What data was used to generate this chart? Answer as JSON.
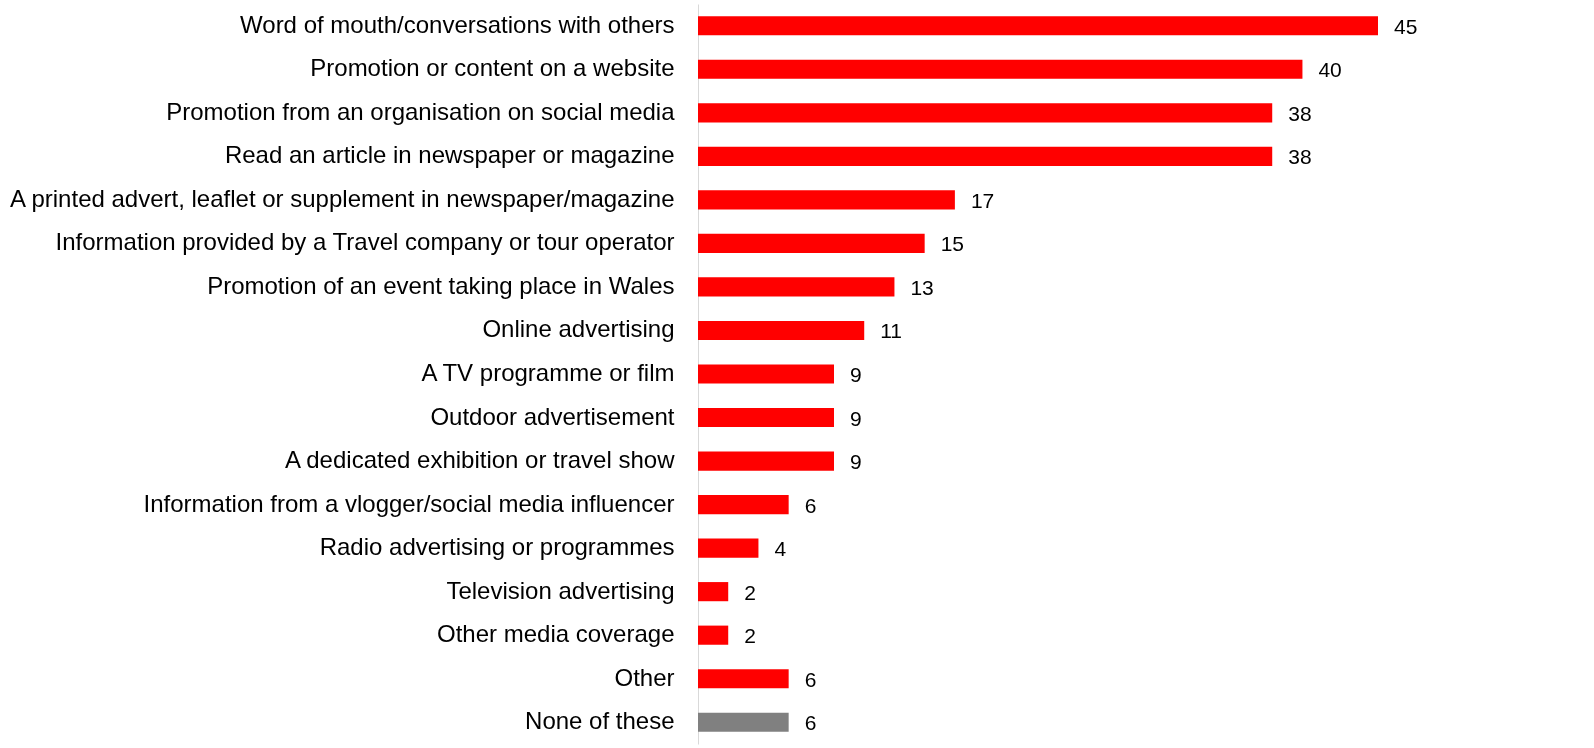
{
  "chart_data": {
    "type": "bar",
    "orientation": "horizontal",
    "data_labels": true,
    "categories": [
      "Word of mouth/conversations with others",
      "Promotion or content on a website",
      "Promotion from an organisation on social media",
      "Read an article in newspaper or magazine",
      "A printed advert, leaflet or supplement in newspaper/magazine",
      "Information provided by a Travel company or tour operator",
      "Promotion of an event taking place in Wales",
      "Online advertising",
      "A TV programme or film",
      "Outdoor advertisement",
      "A dedicated exhibition or travel show",
      "Information from a vlogger/social media influencer",
      "Radio advertising or programmes",
      "Television advertising",
      "Other media coverage",
      "Other",
      "None of these"
    ],
    "values": [
      45,
      40,
      38,
      38,
      17,
      15,
      13,
      11,
      9,
      9,
      9,
      6,
      4,
      2,
      2,
      6,
      6
    ],
    "colors": [
      "#ff0000",
      "#ff0000",
      "#ff0000",
      "#ff0000",
      "#ff0000",
      "#ff0000",
      "#ff0000",
      "#ff0000",
      "#ff0000",
      "#ff0000",
      "#ff0000",
      "#ff0000",
      "#ff0000",
      "#ff0000",
      "#ff0000",
      "#ff0000",
      "#808080"
    ]
  }
}
